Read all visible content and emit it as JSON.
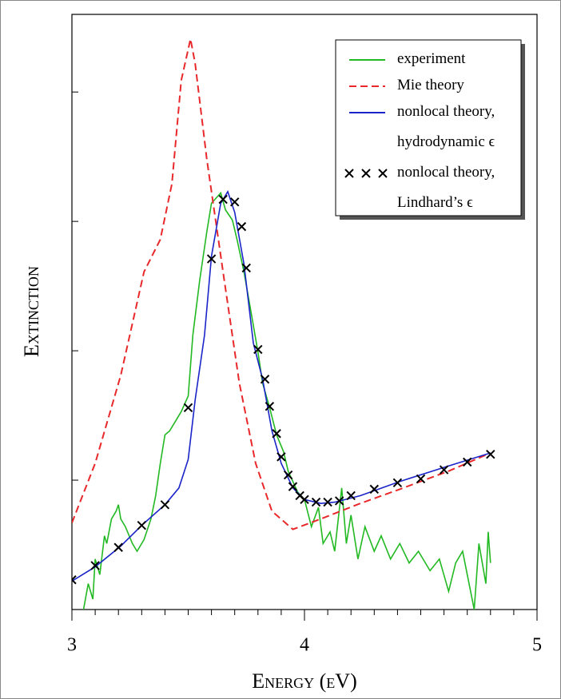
{
  "chart_data": {
    "type": "line",
    "xlabel": "Energy (eV)",
    "ylabel": "Extinction",
    "xlim": [
      3,
      5
    ],
    "ylim": [
      0,
      4.6
    ],
    "xticks": [
      3,
      4,
      5
    ],
    "xminorticks": [
      3.1,
      3.2,
      3.3,
      3.4,
      3.5,
      3.6,
      3.7,
      3.8,
      3.9,
      4.1,
      4.2,
      4.3,
      4.4,
      4.5,
      4.6,
      4.7,
      4.8,
      4.9
    ],
    "yticks": [
      0,
      1,
      2,
      3,
      4
    ],
    "legend": "upper right",
    "series": [
      {
        "name": "experiment",
        "color": "#22b922",
        "style": "solid",
        "x": [
          3.05,
          3.07,
          3.09,
          3.1,
          3.12,
          3.14,
          3.15,
          3.17,
          3.19,
          3.2,
          3.21,
          3.23,
          3.26,
          3.28,
          3.31,
          3.34,
          3.36,
          3.38,
          3.4,
          3.42,
          3.45,
          3.47,
          3.5,
          3.52,
          3.55,
          3.58,
          3.6,
          3.62,
          3.64,
          3.66,
          3.69,
          3.71,
          3.74,
          3.77,
          3.8,
          3.82,
          3.85,
          3.88,
          3.91,
          3.93,
          3.97,
          4.0,
          4.03,
          4.06,
          4.08,
          4.11,
          4.13,
          4.16,
          4.18,
          4.2,
          4.23,
          4.26,
          4.3,
          4.33,
          4.37,
          4.41,
          4.45,
          4.49,
          4.54,
          4.58,
          4.62,
          4.65,
          4.68,
          4.7,
          4.73,
          4.75,
          4.78,
          4.79,
          4.8
        ],
        "values": [
          0.0,
          0.2,
          0.08,
          0.39,
          0.27,
          0.57,
          0.51,
          0.7,
          0.76,
          0.81,
          0.7,
          0.64,
          0.51,
          0.45,
          0.54,
          0.7,
          0.88,
          1.13,
          1.35,
          1.38,
          1.47,
          1.53,
          1.65,
          2.12,
          2.55,
          2.92,
          3.14,
          3.18,
          3.22,
          3.09,
          3.01,
          2.86,
          2.61,
          2.3,
          1.99,
          1.75,
          1.56,
          1.35,
          1.22,
          1.07,
          0.91,
          0.85,
          0.64,
          0.79,
          0.51,
          0.6,
          0.45,
          0.94,
          0.51,
          0.73,
          0.39,
          0.64,
          0.45,
          0.57,
          0.39,
          0.51,
          0.36,
          0.45,
          0.3,
          0.39,
          0.14,
          0.36,
          0.45,
          0.27,
          0.0,
          0.51,
          0.2,
          0.6,
          0.36
        ]
      },
      {
        "name": "Mie theory",
        "color": "#e8282a",
        "style": "dashed",
        "x": [
          3.0,
          3.1,
          3.21,
          3.31,
          3.38,
          3.43,
          3.47,
          3.51,
          3.53,
          3.58,
          3.65,
          3.72,
          3.79,
          3.86,
          3.95,
          4.07,
          4.24,
          4.41,
          4.62,
          4.8
        ],
        "values": [
          0.67,
          1.13,
          1.81,
          2.61,
          2.86,
          3.29,
          4.09,
          4.41,
          4.22,
          3.48,
          2.61,
          1.75,
          1.13,
          0.76,
          0.62,
          0.7,
          0.82,
          0.93,
          1.07,
          1.21
        ]
      },
      {
        "name": "nonlocal theory,\nhydrodynamic ϵ",
        "color": "#1a24c8",
        "style": "solid",
        "x": [
          3.0,
          3.1,
          3.21,
          3.3,
          3.4,
          3.46,
          3.5,
          3.53,
          3.57,
          3.6,
          3.64,
          3.67,
          3.7,
          3.74,
          3.78,
          3.82,
          3.86,
          3.9,
          3.95,
          4.0,
          4.07,
          4.13,
          4.24,
          4.41,
          4.62,
          4.8
        ],
        "values": [
          0.22,
          0.33,
          0.49,
          0.65,
          0.81,
          0.94,
          1.16,
          1.62,
          2.12,
          2.73,
          3.14,
          3.23,
          3.07,
          2.67,
          2.06,
          1.78,
          1.38,
          1.13,
          0.94,
          0.85,
          0.82,
          0.83,
          0.88,
          0.99,
          1.11,
          1.21
        ]
      },
      {
        "name": "nonlocal theory,\nLindhard’s ϵ",
        "color": "#000000",
        "style": "markers",
        "x": [
          3.0,
          3.1,
          3.2,
          3.3,
          3.4,
          3.5,
          3.6,
          3.65,
          3.7,
          3.73,
          3.75,
          3.8,
          3.83,
          3.85,
          3.88,
          3.9,
          3.93,
          3.95,
          3.98,
          4.0,
          4.05,
          4.1,
          4.15,
          4.2,
          4.3,
          4.4,
          4.5,
          4.6,
          4.7,
          4.8
        ],
        "values": [
          0.23,
          0.34,
          0.48,
          0.65,
          0.81,
          1.56,
          2.71,
          3.17,
          3.15,
          2.96,
          2.64,
          2.01,
          1.78,
          1.57,
          1.36,
          1.18,
          1.04,
          0.95,
          0.88,
          0.85,
          0.83,
          0.83,
          0.84,
          0.88,
          0.93,
          0.98,
          1.01,
          1.08,
          1.14,
          1.2
        ]
      }
    ]
  }
}
